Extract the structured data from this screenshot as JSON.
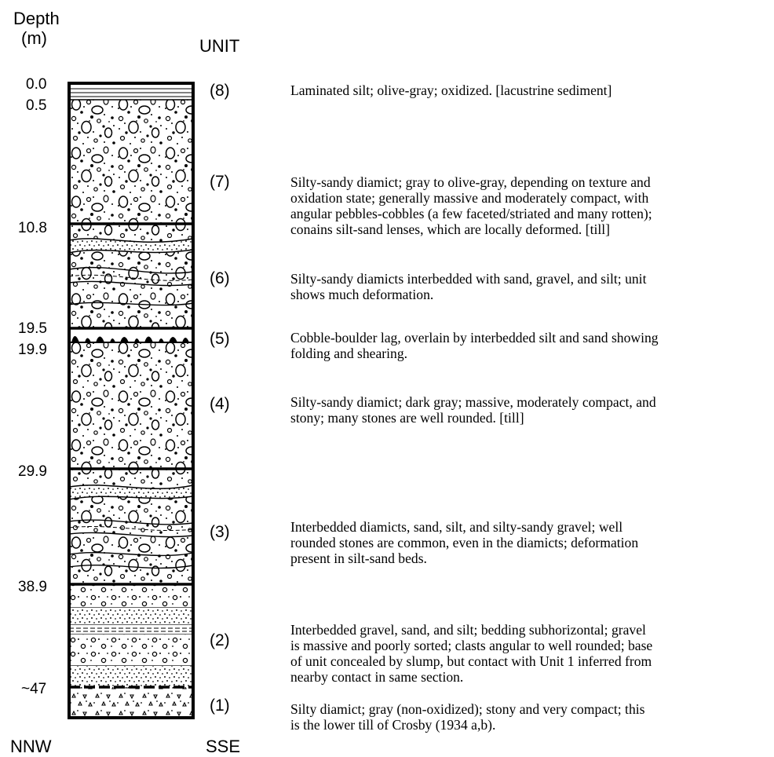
{
  "header": {
    "depth_line1": "Depth",
    "depth_line2": "(m)",
    "unit": "UNIT"
  },
  "footer": {
    "left": "NNW",
    "right": "SSE"
  },
  "depth_labels": [
    "0.0",
    "0.5",
    "10.8",
    "19.5",
    "19.9",
    "29.9",
    "38.9",
    "~47"
  ],
  "units": [
    {
      "label": "(8)",
      "description": [
        "Laminated silt; olive-gray; oxidized.  [lacustrine sediment]"
      ]
    },
    {
      "label": "(7)",
      "description": [
        "Silty-sandy diamict; gray to olive-gray, depending on texture and",
        "oxidation state; generally massive and moderately compact, with",
        "angular pebbles-cobbles (a few faceted/striated and many rotten);",
        "conains silt-sand lenses, which are locally deformed.  [till]"
      ]
    },
    {
      "label": "(6)",
      "description": [
        "Silty-sandy diamicts interbedded with sand, gravel, and silt; unit",
        "shows much deformation."
      ]
    },
    {
      "label": "(5)",
      "description": [
        "Cobble-boulder lag, overlain by interbedded silt and sand showing",
        "folding and shearing."
      ]
    },
    {
      "label": "(4)",
      "description": [
        "Silty-sandy diamict; dark gray; massive, moderately compact, and",
        "stony; many stones are well rounded.  [till]"
      ]
    },
    {
      "label": "(3)",
      "description": [
        "Interbedded diamicts, sand, silt, and silty-sandy gravel; well",
        "rounded stones are common, even in the diamicts; deformation",
        "present in silt-sand beds."
      ]
    },
    {
      "label": "(2)",
      "description": [
        "Interbedded gravel, sand, and silt; bedding subhorizontal; gravel",
        "is massive and poorly sorted; clasts angular to well rounded; base",
        "of unit concealed by slump, but contact with Unit 1 inferred from",
        "nearby contact in same section."
      ]
    },
    {
      "label": "(1)",
      "description": [
        "Silty diamict; gray (non-oxidized); stony and very compact; this",
        "is the lower till of Crosby (1934 a,b)."
      ]
    }
  ]
}
